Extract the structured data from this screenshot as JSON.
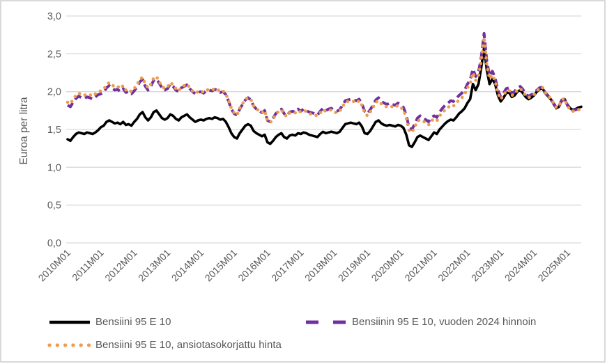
{
  "figure": {
    "background": "#FFFFFF",
    "border_color": "#D9D9D9"
  },
  "chart_data": {
    "type": "line",
    "title": "",
    "xlabel": "",
    "ylabel": "Euroa per litra",
    "ylim": [
      0.0,
      3.0
    ],
    "grid": "horizontal",
    "grid_color": "#D9D9D9",
    "axis_text_color": "#595959",
    "legend_position": "bottom",
    "x_unit": "month",
    "x_start": "2010M01",
    "x_end": "2025M06",
    "n_points": 186,
    "y_ticks": [
      {
        "value": 3.0,
        "label": "3,0"
      },
      {
        "value": 2.5,
        "label": "2,5"
      },
      {
        "value": 2.0,
        "label": "2,0"
      },
      {
        "value": 1.5,
        "label": "1,5"
      },
      {
        "value": 1.0,
        "label": "1,0"
      },
      {
        "value": 0.5,
        "label": "0,5"
      },
      {
        "value": 0.0,
        "label": "0,0"
      }
    ],
    "x_ticks": [
      {
        "index": 0,
        "label": "2010M01"
      },
      {
        "index": 12,
        "label": "2011M01"
      },
      {
        "index": 24,
        "label": "2012M01"
      },
      {
        "index": 36,
        "label": "2013M01"
      },
      {
        "index": 48,
        "label": "2014M01"
      },
      {
        "index": 60,
        "label": "2015M01"
      },
      {
        "index": 72,
        "label": "2016M01"
      },
      {
        "index": 84,
        "label": "2017M01"
      },
      {
        "index": 96,
        "label": "2018M01"
      },
      {
        "index": 108,
        "label": "2019M01"
      },
      {
        "index": 120,
        "label": "2020M01"
      },
      {
        "index": 132,
        "label": "2021M01"
      },
      {
        "index": 144,
        "label": "2022M01"
      },
      {
        "index": 156,
        "label": "2023M01"
      },
      {
        "index": 168,
        "label": "2024M01"
      },
      {
        "index": 180,
        "label": "2025M01"
      }
    ],
    "series": [
      {
        "name": "Bensiini 95 E 10",
        "color": "#000000",
        "style": "solid",
        "values": [
          1.37,
          1.35,
          1.4,
          1.44,
          1.46,
          1.45,
          1.44,
          1.46,
          1.45,
          1.44,
          1.46,
          1.49,
          1.53,
          1.55,
          1.6,
          1.62,
          1.6,
          1.58,
          1.59,
          1.57,
          1.6,
          1.56,
          1.57,
          1.55,
          1.6,
          1.64,
          1.7,
          1.73,
          1.66,
          1.62,
          1.66,
          1.73,
          1.75,
          1.7,
          1.65,
          1.63,
          1.65,
          1.7,
          1.68,
          1.64,
          1.62,
          1.66,
          1.68,
          1.7,
          1.66,
          1.63,
          1.6,
          1.62,
          1.63,
          1.62,
          1.64,
          1.65,
          1.64,
          1.66,
          1.65,
          1.63,
          1.64,
          1.6,
          1.53,
          1.45,
          1.4,
          1.38,
          1.45,
          1.5,
          1.55,
          1.57,
          1.55,
          1.48,
          1.45,
          1.43,
          1.41,
          1.43,
          1.33,
          1.31,
          1.35,
          1.4,
          1.43,
          1.45,
          1.4,
          1.38,
          1.42,
          1.43,
          1.42,
          1.45,
          1.44,
          1.46,
          1.45,
          1.43,
          1.42,
          1.41,
          1.4,
          1.44,
          1.47,
          1.45,
          1.46,
          1.47,
          1.46,
          1.45,
          1.47,
          1.52,
          1.57,
          1.58,
          1.59,
          1.58,
          1.57,
          1.59,
          1.54,
          1.45,
          1.44,
          1.48,
          1.54,
          1.6,
          1.62,
          1.58,
          1.56,
          1.55,
          1.56,
          1.55,
          1.54,
          1.56,
          1.55,
          1.52,
          1.43,
          1.29,
          1.27,
          1.33,
          1.4,
          1.42,
          1.4,
          1.38,
          1.36,
          1.41,
          1.46,
          1.44,
          1.5,
          1.54,
          1.58,
          1.61,
          1.63,
          1.62,
          1.66,
          1.71,
          1.74,
          1.78,
          1.85,
          1.9,
          2.1,
          2.02,
          2.1,
          2.32,
          2.58,
          2.28,
          2.1,
          2.17,
          2.1,
          1.95,
          1.87,
          1.92,
          1.98,
          1.99,
          1.93,
          1.95,
          2.0,
          2.02,
          1.98,
          1.93,
          1.9,
          1.92,
          1.95,
          2.0,
          2.03,
          2.05,
          1.98,
          1.94,
          1.9,
          1.84,
          1.78,
          1.8,
          1.88,
          1.9,
          1.83,
          1.78,
          1.76,
          1.77,
          1.79,
          1.8
        ]
      },
      {
        "name": "Bensiinin 95 E 10, vuoden 2024 hinnoin",
        "color": "#7030A0",
        "style": "dashed",
        "values": [
          1.82,
          1.8,
          1.86,
          1.91,
          1.94,
          1.92,
          1.91,
          1.93,
          1.92,
          1.9,
          1.93,
          1.96,
          1.97,
          1.99,
          2.05,
          2.08,
          2.05,
          2.02,
          2.03,
          2.0,
          2.04,
          1.99,
          2.0,
          1.97,
          2.01,
          2.06,
          2.13,
          2.16,
          2.07,
          2.02,
          2.07,
          2.15,
          2.17,
          2.11,
          2.05,
          2.02,
          2.04,
          2.1,
          2.07,
          2.02,
          2.0,
          2.05,
          2.07,
          2.09,
          2.04,
          2.0,
          1.97,
          1.99,
          2.0,
          1.98,
          2.01,
          2.02,
          2.01,
          2.03,
          2.02,
          1.99,
          2.0,
          1.96,
          1.87,
          1.77,
          1.71,
          1.69,
          1.77,
          1.83,
          1.89,
          1.92,
          1.89,
          1.81,
          1.77,
          1.75,
          1.72,
          1.75,
          1.62,
          1.6,
          1.65,
          1.71,
          1.74,
          1.77,
          1.71,
          1.68,
          1.73,
          1.74,
          1.73,
          1.77,
          1.74,
          1.77,
          1.75,
          1.73,
          1.72,
          1.71,
          1.69,
          1.74,
          1.78,
          1.75,
          1.77,
          1.78,
          1.75,
          1.74,
          1.76,
          1.82,
          1.88,
          1.89,
          1.9,
          1.89,
          1.88,
          1.9,
          1.84,
          1.74,
          1.71,
          1.76,
          1.82,
          1.89,
          1.92,
          1.87,
          1.85,
          1.83,
          1.85,
          1.83,
          1.82,
          1.85,
          1.83,
          1.79,
          1.69,
          1.52,
          1.5,
          1.57,
          1.65,
          1.68,
          1.65,
          1.63,
          1.6,
          1.66,
          1.68,
          1.66,
          1.73,
          1.78,
          1.82,
          1.85,
          1.88,
          1.87,
          1.91,
          1.95,
          1.98,
          2.02,
          2.1,
          2.15,
          2.3,
          2.2,
          2.26,
          2.46,
          2.77,
          2.4,
          2.21,
          2.27,
          2.18,
          2.02,
          1.93,
          1.98,
          2.04,
          2.05,
          1.98,
          2.0,
          2.05,
          2.07,
          2.03,
          1.97,
          1.94,
          1.96,
          1.97,
          2.02,
          2.05,
          2.06,
          1.99,
          1.95,
          1.91,
          1.85,
          1.79,
          1.81,
          1.89,
          1.91,
          1.82,
          1.77,
          1.75,
          1.76,
          1.77,
          1.78
        ]
      },
      {
        "name": "Bensiini 95 E 10, ansiotasokorjattu hinta",
        "color": "#ED9C4E",
        "style": "dotted",
        "values": [
          1.86,
          1.84,
          1.9,
          1.95,
          1.98,
          1.96,
          1.95,
          1.97,
          1.96,
          1.94,
          1.97,
          2.0,
          2.01,
          2.03,
          2.09,
          2.12,
          2.09,
          2.06,
          2.07,
          2.04,
          2.08,
          2.02,
          2.03,
          2.0,
          2.04,
          2.09,
          2.16,
          2.19,
          2.1,
          2.05,
          2.1,
          2.18,
          2.2,
          2.13,
          2.07,
          2.04,
          2.06,
          2.12,
          2.09,
          2.04,
          2.01,
          2.06,
          2.08,
          2.1,
          2.05,
          2.01,
          1.98,
          2.0,
          2.01,
          1.99,
          2.02,
          2.03,
          2.02,
          2.04,
          2.03,
          2.0,
          2.01,
          1.97,
          1.88,
          1.78,
          1.72,
          1.69,
          1.78,
          1.84,
          1.9,
          1.92,
          1.9,
          1.81,
          1.77,
          1.75,
          1.72,
          1.75,
          1.62,
          1.59,
          1.64,
          1.7,
          1.74,
          1.76,
          1.7,
          1.67,
          1.72,
          1.73,
          1.72,
          1.75,
          1.73,
          1.75,
          1.74,
          1.71,
          1.7,
          1.69,
          1.68,
          1.72,
          1.76,
          1.74,
          1.75,
          1.76,
          1.73,
          1.72,
          1.74,
          1.8,
          1.86,
          1.87,
          1.88,
          1.87,
          1.85,
          1.88,
          1.82,
          1.72,
          1.68,
          1.73,
          1.79,
          1.86,
          1.88,
          1.84,
          1.81,
          1.8,
          1.81,
          1.8,
          1.79,
          1.82,
          1.79,
          1.76,
          1.65,
          1.49,
          1.46,
          1.53,
          1.61,
          1.63,
          1.61,
          1.59,
          1.56,
          1.62,
          1.63,
          1.61,
          1.68,
          1.72,
          1.76,
          1.79,
          1.82,
          1.81,
          1.85,
          1.89,
          1.92,
          1.96,
          2.05,
          2.1,
          2.25,
          2.15,
          2.21,
          2.41,
          2.72,
          2.35,
          2.17,
          2.22,
          2.14,
          1.98,
          1.9,
          1.95,
          2.01,
          2.02,
          1.95,
          1.97,
          2.02,
          2.04,
          2.0,
          1.95,
          1.92,
          1.94,
          1.96,
          2.01,
          2.04,
          2.06,
          1.99,
          1.95,
          1.91,
          1.85,
          1.79,
          1.81,
          1.89,
          1.91,
          1.81,
          1.76,
          1.74,
          1.75,
          1.76,
          1.77
        ]
      }
    ]
  }
}
